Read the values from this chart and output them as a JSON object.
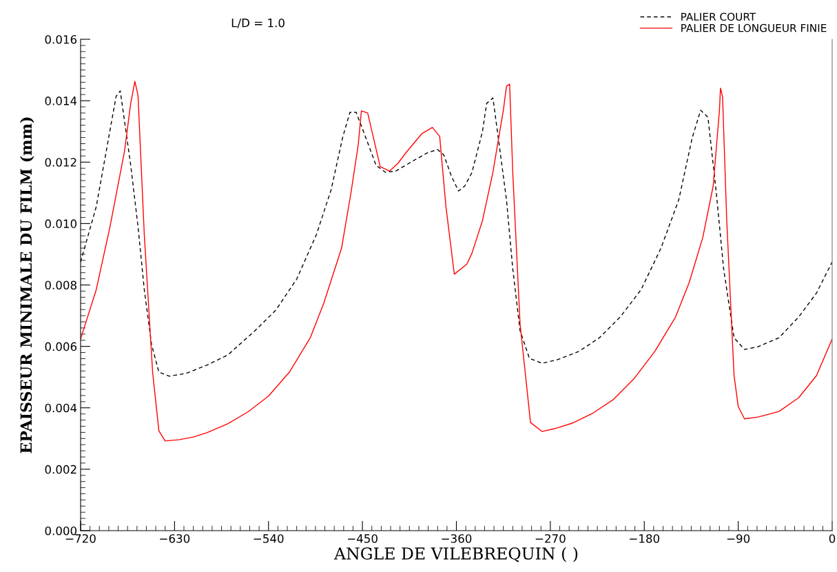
{
  "chart_data": {
    "type": "line",
    "title": "L/D = 1.0",
    "xlabel": "ANGLE DE VILEBREQUIN ( )",
    "ylabel": "EPAISSEUR MINIMALE DU FILM (mm)",
    "xlim": [
      -720,
      0
    ],
    "xticks": [
      {
        "value": -720,
        "label": "−720"
      },
      {
        "value": -630,
        "label": "−630"
      },
      {
        "value": -540,
        "label": "−540"
      },
      {
        "value": -450,
        "label": "−450"
      },
      {
        "value": -360,
        "label": "−360"
      },
      {
        "value": -270,
        "label": "−270"
      },
      {
        "value": -180,
        "label": "−180"
      },
      {
        "value": -90,
        "label": "−90"
      },
      0
    ],
    "ylim": [
      0,
      0.016
    ],
    "yticks": [
      {
        "value": 0,
        "label": "0.000"
      },
      {
        "value": 0.002,
        "label": "0.002"
      },
      {
        "value": 0.004,
        "label": "0.004"
      },
      {
        "value": 0.006,
        "label": "0.006"
      },
      {
        "value": 0.008,
        "label": "0.008"
      },
      {
        "value": 0.01,
        "label": "0.010"
      },
      {
        "value": 0.012,
        "label": "0.012"
      },
      {
        "value": 0.014,
        "label": "0.014"
      },
      {
        "value": 0.016,
        "label": "0.016"
      }
    ],
    "grid": false,
    "legend": "top right",
    "marker": "none",
    "series": [
      {
        "name": "PALIER COURT",
        "color": "#000000",
        "line_style": "dashed",
        "x": [
          -720,
          -705,
          -686,
          -682,
          -672,
          -665,
          -659,
          -652,
          -645,
          -635,
          -619,
          -599,
          -579,
          -553,
          -533,
          -513,
          -494,
          -480,
          -469,
          -462,
          -456,
          -449,
          -437,
          -428,
          -418,
          -401,
          -388,
          -378,
          -372,
          -365,
          -358,
          -352,
          -345,
          -335,
          -331,
          -325,
          -319,
          -312,
          -306,
          -299,
          -290,
          -278,
          -263,
          -243,
          -223,
          -203,
          -183,
          -164,
          -147,
          -134,
          -126,
          -119,
          -111,
          -104,
          -94,
          -84,
          -71,
          -51,
          -32,
          -15,
          0
        ],
        "values": [
          0.00875,
          0.01055,
          0.01414,
          0.01432,
          0.0119,
          0.0099,
          0.00785,
          0.00606,
          0.00516,
          0.00503,
          0.00512,
          0.00539,
          0.00572,
          0.00651,
          0.00718,
          0.00819,
          0.00965,
          0.0111,
          0.0128,
          0.01362,
          0.01362,
          0.013,
          0.0119,
          0.01167,
          0.01171,
          0.01205,
          0.0123,
          0.01241,
          0.01223,
          0.01156,
          0.01106,
          0.01122,
          0.01167,
          0.013,
          0.01391,
          0.01409,
          0.01257,
          0.01077,
          0.00853,
          0.00651,
          0.00561,
          0.00545,
          0.00557,
          0.00583,
          0.00628,
          0.00696,
          0.00785,
          0.0092,
          0.01077,
          0.0128,
          0.01369,
          0.01346,
          0.011,
          0.00853,
          0.00628,
          0.0059,
          0.00599,
          0.00628,
          0.00696,
          0.00774,
          0.00875
        ]
      },
      {
        "name": "PALIER DE LONGUEUR FINIE",
        "color": "#ff0000",
        "line_style": "solid",
        "x": [
          -720,
          -705,
          -692,
          -678,
          -672,
          -668,
          -665,
          -659,
          -651,
          -645,
          -639,
          -626,
          -612,
          -599,
          -579,
          -560,
          -540,
          -520,
          -500,
          -487,
          -470,
          -461,
          -454,
          -451,
          -445,
          -433,
          -424,
          -416,
          -408,
          -393,
          -383,
          -376,
          -370,
          -362,
          -350,
          -345,
          -335,
          -325,
          -315,
          -312,
          -309,
          -306,
          -299,
          -289,
          -278,
          -266,
          -249,
          -230,
          -210,
          -190,
          -170,
          -150,
          -137,
          -124,
          -114,
          -108,
          -107,
          -105,
          -101,
          -94,
          -90,
          -84,
          -71,
          -51,
          -32,
          -15,
          0
        ],
        "values": [
          0.00624,
          0.00785,
          0.00987,
          0.01234,
          0.01391,
          0.01463,
          0.01418,
          0.00965,
          0.00516,
          0.00325,
          0.00292,
          0.00296,
          0.00305,
          0.00319,
          0.00348,
          0.00386,
          0.00438,
          0.00516,
          0.00628,
          0.00741,
          0.0092,
          0.011,
          0.01257,
          0.01367,
          0.0136,
          0.01185,
          0.01171,
          0.01196,
          0.01232,
          0.01293,
          0.01313,
          0.01284,
          0.01055,
          0.00835,
          0.00868,
          0.00904,
          0.0101,
          0.01167,
          0.01369,
          0.01447,
          0.01454,
          0.01167,
          0.00673,
          0.00352,
          0.00323,
          0.00332,
          0.0035,
          0.00381,
          0.00426,
          0.00494,
          0.00583,
          0.00696,
          0.00808,
          0.00954,
          0.01122,
          0.01369,
          0.01441,
          0.01412,
          0.0101,
          0.00505,
          0.00404,
          0.00364,
          0.0037,
          0.00388,
          0.00433,
          0.00505,
          0.00624
        ]
      }
    ]
  }
}
